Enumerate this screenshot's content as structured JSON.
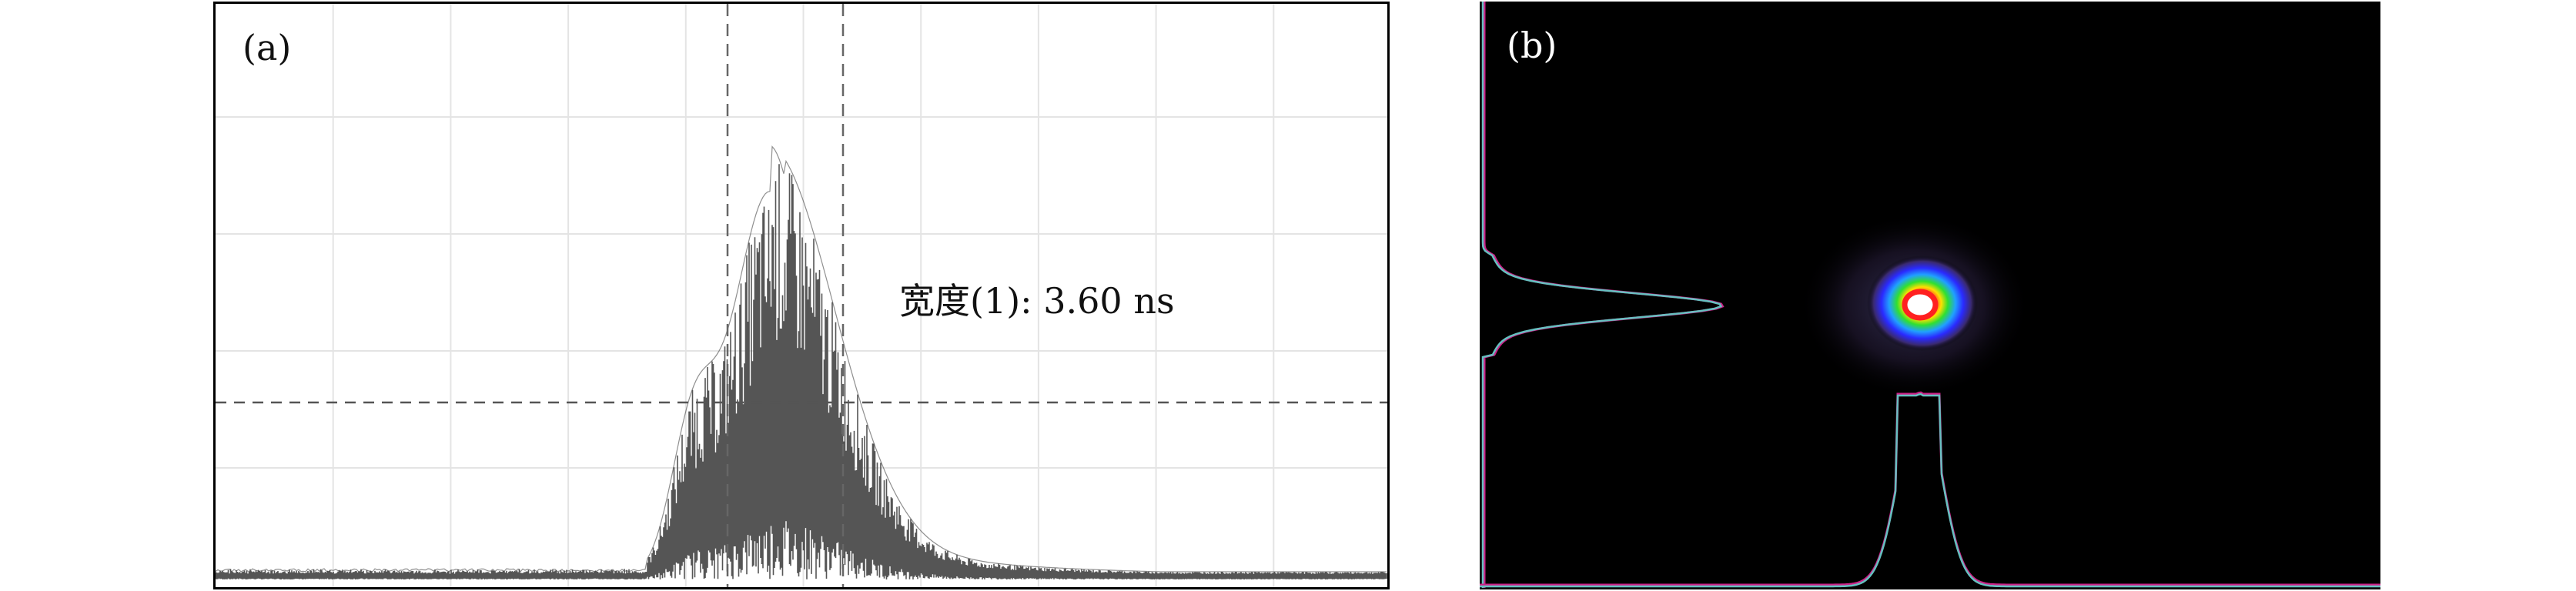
{
  "panel_a": {
    "label": "(a)",
    "annotation": "宽度(1): 3.60 ns"
  },
  "panel_b": {
    "label": "(b)"
  },
  "colors": {
    "trace": "#555555",
    "profile_magenta": "#cc2288",
    "profile_teal": "#66c0c0",
    "beam_core": "#ffffff",
    "beam_ring": "#ff2020"
  }
}
